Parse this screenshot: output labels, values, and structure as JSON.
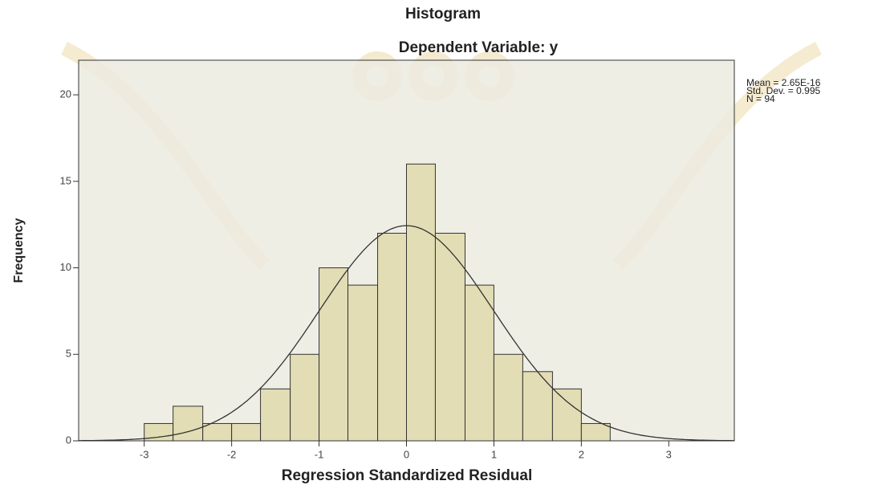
{
  "chart_data": {
    "type": "histogram",
    "title": "Histogram",
    "subtitle": "Dependent Variable: y",
    "x_label": "Regression Standardized Residual",
    "y_label": "Frequency",
    "bins": [
      -3,
      -2.67,
      -2.33,
      -2,
      -1.67,
      -1.33,
      -1,
      -0.67,
      -0.33,
      0,
      0.33,
      0.67,
      1,
      1.33,
      1.67,
      2,
      2.33
    ],
    "counts": [
      1,
      2,
      1,
      1,
      3,
      5,
      10,
      9,
      12,
      16,
      12,
      9,
      5,
      4,
      3,
      1
    ],
    "color": "#e2ddb4",
    "xlim": [
      -3.75,
      3.75
    ],
    "xticks": [
      -3,
      -2,
      -1,
      0,
      1,
      2,
      3
    ],
    "ylim": [
      0,
      22
    ],
    "yticks": [
      0,
      5,
      10,
      15,
      20
    ],
    "stats": {
      "lines": [
        "Mean = 2.65E-16",
        "Std. Dev. = 0.995",
        "N = 94"
      ],
      "mean": 2.65e-16,
      "std_dev": 0.995,
      "n": 94
    }
  }
}
